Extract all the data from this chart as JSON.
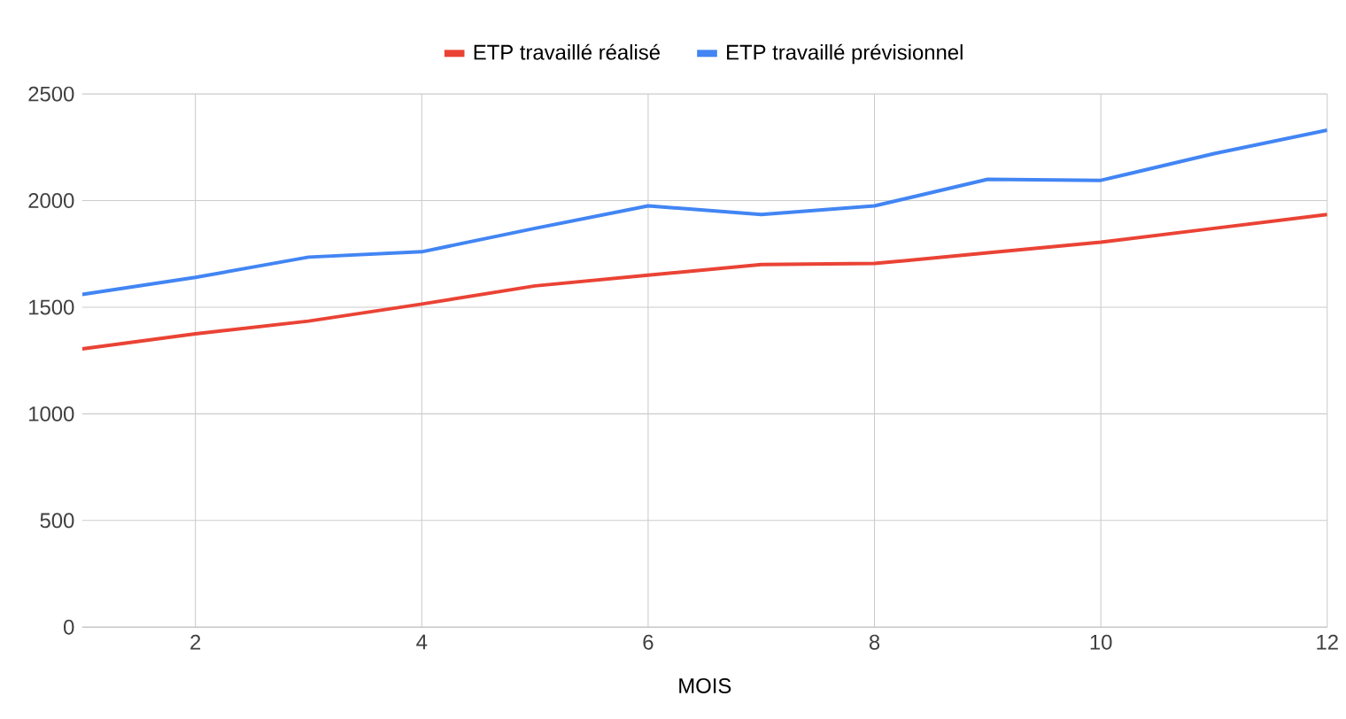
{
  "chart_data": {
    "type": "line",
    "xlabel": "MOIS",
    "x": [
      1,
      2,
      3,
      4,
      5,
      6,
      7,
      8,
      9,
      10,
      11,
      12
    ],
    "series": [
      {
        "name": "ETP travaillé réalisé",
        "color": "#ea4335",
        "values": [
          1305,
          1375,
          1435,
          1515,
          1600,
          1650,
          1700,
          1705,
          1755,
          1805,
          1870,
          1935
        ]
      },
      {
        "name": "ETP travaillé prévisionnel",
        "color": "#4285f4",
        "values": [
          1560,
          1640,
          1735,
          1760,
          1870,
          1975,
          1935,
          1975,
          2100,
          2095,
          2220,
          2330
        ]
      }
    ],
    "xlim": [
      1,
      12
    ],
    "xticks": [
      2,
      4,
      6,
      8,
      10,
      12
    ],
    "ylim": [
      0,
      2500
    ],
    "yticks": [
      0,
      500,
      1000,
      1500,
      2000,
      2500
    ],
    "grid": true,
    "legend": "top",
    "marker": "none",
    "line_style": "solid"
  }
}
